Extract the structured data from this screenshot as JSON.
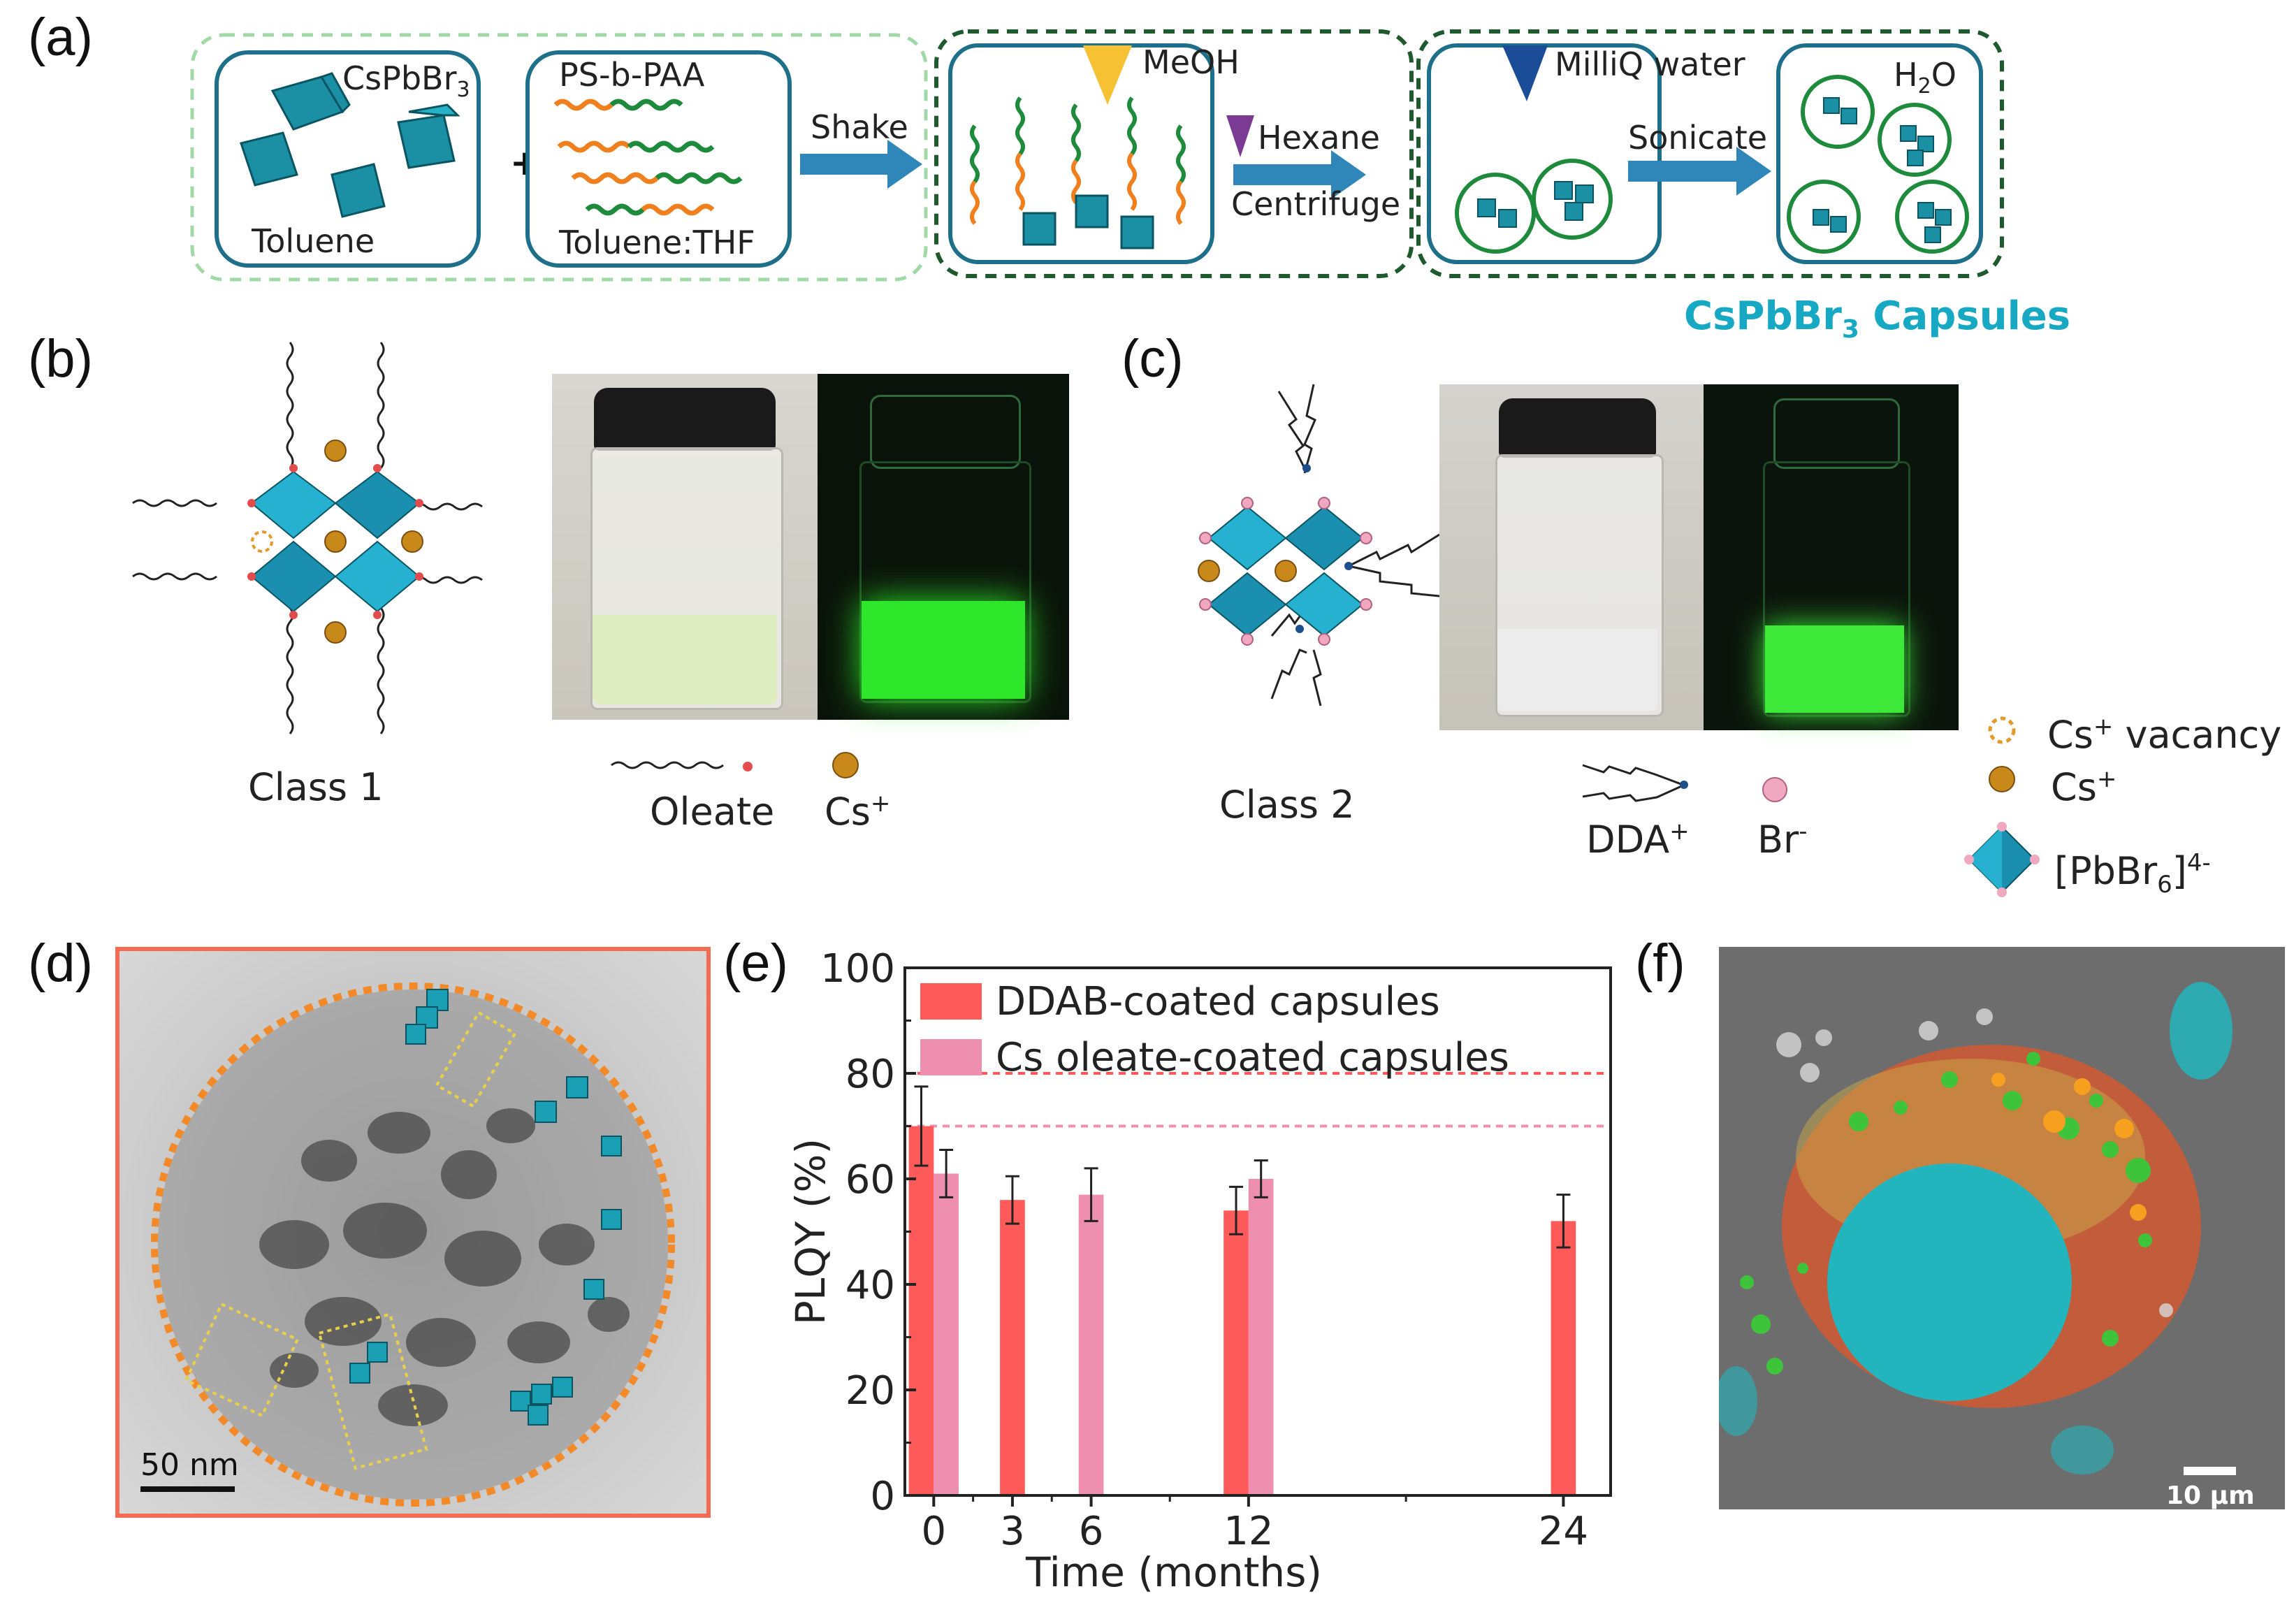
{
  "panels": {
    "a": "(a)",
    "b": "(b)",
    "c": "(c)",
    "d": "(d)",
    "e": "(e)",
    "f": "(f)"
  },
  "scheme": {
    "cspbbr3": "CsPbBr",
    "cspbbr3_sub": "3",
    "plus": "+",
    "toluene": "Toluene",
    "ps_b_paa": "PS-b-PAA",
    "toluene_thf": "Toluene:THF",
    "shake": "Shake",
    "meoh": "MeOH",
    "hexane": "Hexane",
    "centrifuge": "Centrifuge",
    "milliq": "MilliQ water",
    "sonicate": "Sonicate",
    "h2o": "H",
    "h2o_sub": "2",
    "h2o_end": "O",
    "capsules": "CsPbBr",
    "capsules_sub": "3",
    "capsules_end": " Capsules",
    "capsule_color": "#17a9c4"
  },
  "class1": {
    "label": "Class 1",
    "legend_oleate": "Oleate",
    "legend_cs": "Cs",
    "legend_cs_sup": "+"
  },
  "class2": {
    "label": "Class 2",
    "legend_dda": "DDA",
    "legend_dda_sup": "+",
    "legend_br": "Br",
    "legend_br_sup": "-"
  },
  "legend_right": {
    "vacancy": "Cs",
    "vacancy_sup": "+",
    "vacancy_end": " vacancy",
    "cs": "Cs",
    "cs_sup": "+",
    "pbbr": "[PbBr",
    "pbbr_sub": "6",
    "pbbr_end": "]",
    "pbbr_sup": "4-"
  },
  "tem": {
    "scalebar": "50 nm"
  },
  "micro": {
    "scalebar": "10 μm"
  },
  "chart_data": {
    "type": "bar",
    "xlabel": "Time (months)",
    "ylabel": "PLQY (%)",
    "ylim": [
      0,
      100
    ],
    "yticks": [
      0,
      20,
      40,
      60,
      80,
      100
    ],
    "xticks": [
      0,
      3,
      6,
      12,
      24
    ],
    "series": [
      {
        "name": "DDAB-coated capsules",
        "color": "#ff5a5a",
        "points": [
          {
            "x": 0,
            "y": 70,
            "err": 7.5
          },
          {
            "x": 3,
            "y": 56,
            "err": 4.5
          },
          {
            "x": 12,
            "y": 54,
            "err": 4.5
          },
          {
            "x": 24,
            "y": 52,
            "err": 5
          }
        ]
      },
      {
        "name": "Cs oleate-coated capsules",
        "color": "#ee8fb0",
        "points": [
          {
            "x": 0,
            "y": 61,
            "err": 4.5
          },
          {
            "x": 6,
            "y": 57,
            "err": 5
          },
          {
            "x": 12,
            "y": 60,
            "err": 3.5
          }
        ]
      }
    ],
    "reference_lines": [
      {
        "y": 80,
        "color": "#ff5a5a",
        "style": "dashed"
      },
      {
        "y": 70,
        "color": "#ee8fb0",
        "style": "dashed"
      }
    ],
    "legend_placement": "top-left"
  }
}
